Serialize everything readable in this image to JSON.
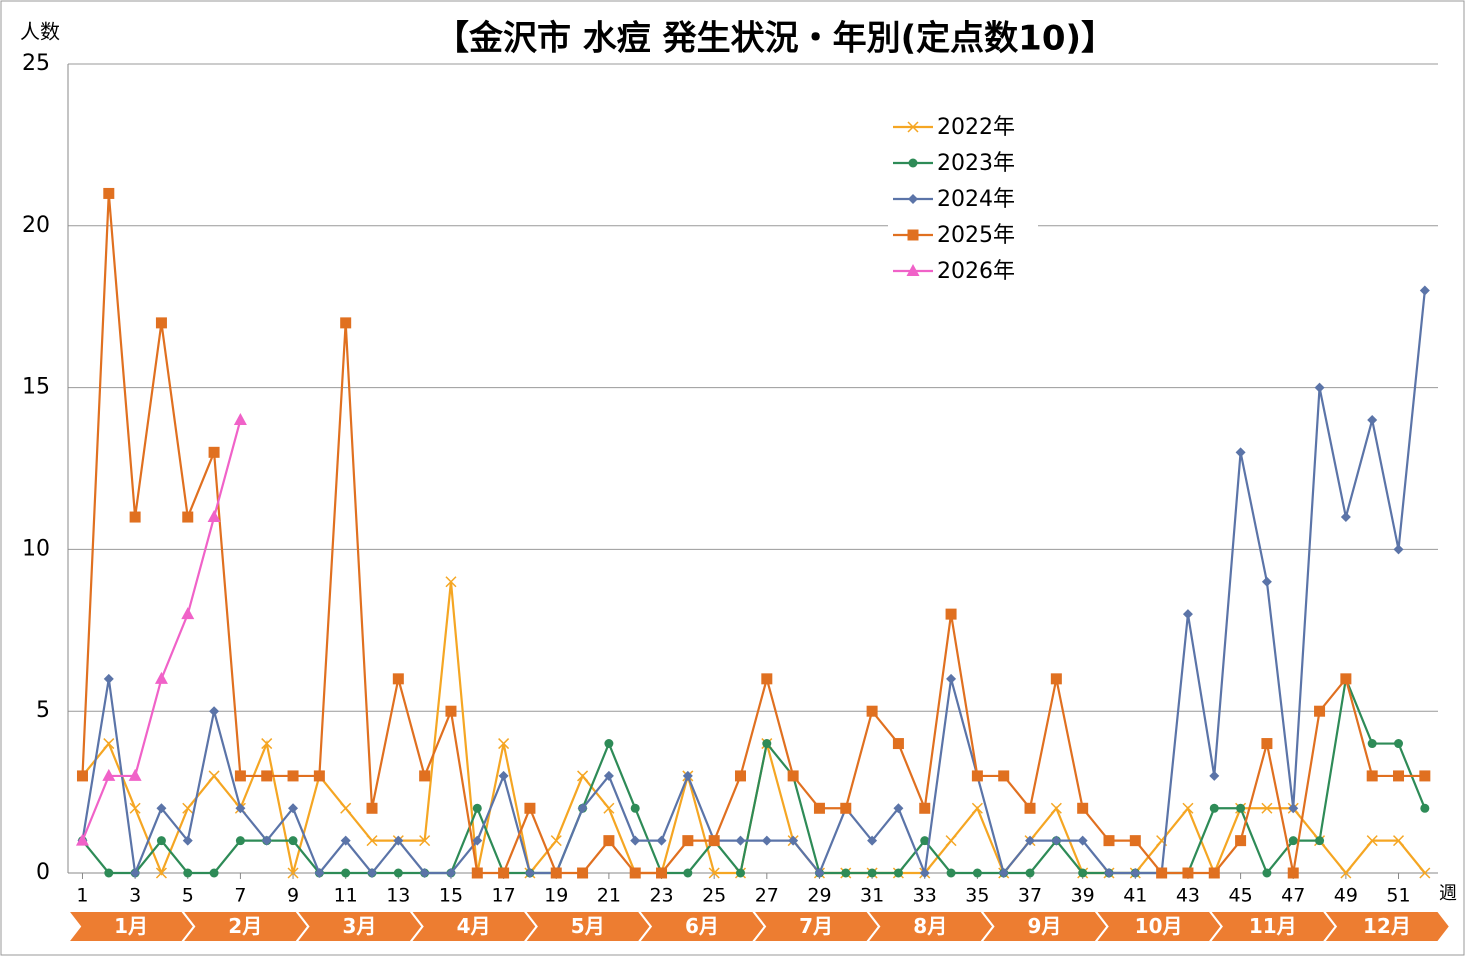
{
  "chart_data": {
    "type": "line",
    "title": "【金沢市 水痘 発生状況・年別(定点数10)】",
    "ylabel": "人数",
    "xlabel": "週",
    "x": [
      1,
      2,
      3,
      4,
      5,
      6,
      7,
      8,
      9,
      10,
      11,
      12,
      13,
      14,
      15,
      16,
      17,
      18,
      19,
      20,
      21,
      22,
      23,
      24,
      25,
      26,
      27,
      28,
      29,
      30,
      31,
      32,
      33,
      34,
      35,
      36,
      37,
      38,
      39,
      40,
      41,
      42,
      43,
      44,
      45,
      46,
      47,
      48,
      49,
      50,
      51,
      52
    ],
    "xlim": [
      0.45,
      52.5
    ],
    "xticks": [
      1,
      3,
      5,
      7,
      9,
      11,
      13,
      15,
      17,
      19,
      21,
      23,
      25,
      27,
      29,
      31,
      33,
      35,
      37,
      39,
      41,
      43,
      45,
      47,
      49,
      51
    ],
    "ylim": [
      0,
      25
    ],
    "yticks": [
      0,
      5,
      10,
      15,
      20,
      25
    ],
    "grid": true,
    "months": [
      "1月",
      "2月",
      "3月",
      "4月",
      "5月",
      "6月",
      "7月",
      "8月",
      "9月",
      "10月",
      "11月",
      "12月"
    ],
    "month_color": "#ed7d31",
    "legend": "upper center",
    "series": [
      {
        "name": "2022年",
        "color": "#f5a623",
        "marker": "x",
        "values": [
          3,
          4,
          2,
          0,
          2,
          3,
          2,
          4,
          0,
          3,
          2,
          1,
          1,
          1,
          9,
          0,
          4,
          0,
          1,
          3,
          2,
          0,
          0,
          3,
          0,
          0,
          4,
          1,
          0,
          0,
          0,
          0,
          0,
          1,
          2,
          0,
          1,
          2,
          0,
          0,
          0,
          1,
          2,
          0,
          2,
          2,
          2,
          1,
          0,
          1,
          1,
          0
        ]
      },
      {
        "name": "2023年",
        "color": "#2e8b57",
        "marker": "circle",
        "values": [
          1,
          0,
          0,
          1,
          0,
          0,
          1,
          1,
          1,
          0,
          0,
          0,
          0,
          0,
          0,
          2,
          0,
          0,
          0,
          2,
          4,
          2,
          0,
          0,
          1,
          0,
          4,
          3,
          0,
          0,
          0,
          0,
          1,
          0,
          0,
          0,
          0,
          1,
          0,
          0,
          0,
          0,
          0,
          2,
          2,
          0,
          1,
          1,
          6,
          4,
          4,
          2
        ]
      },
      {
        "name": "2024年",
        "color": "#5b74a8",
        "marker": "diamond",
        "values": [
          1,
          6,
          0,
          2,
          1,
          5,
          2,
          1,
          2,
          0,
          1,
          0,
          1,
          0,
          0,
          1,
          3,
          0,
          0,
          2,
          3,
          1,
          1,
          3,
          1,
          1,
          1,
          1,
          0,
          2,
          1,
          2,
          0,
          6,
          3,
          0,
          1,
          1,
          1,
          0,
          0,
          0,
          8,
          3,
          13,
          9,
          2,
          15,
          11,
          14,
          10,
          18
        ]
      },
      {
        "name": "2025年",
        "color": "#e07020",
        "marker": "square",
        "values": [
          3,
          21,
          11,
          17,
          11,
          13,
          3,
          3,
          3,
          3,
          17,
          2,
          6,
          3,
          5,
          0,
          0,
          2,
          0,
          0,
          1,
          0,
          0,
          1,
          1,
          3,
          6,
          3,
          2,
          2,
          5,
          4,
          2,
          8,
          3,
          3,
          2,
          6,
          2,
          1,
          1,
          0,
          0,
          0,
          1,
          4,
          0,
          5,
          6,
          3,
          3,
          3
        ]
      },
      {
        "name": "2026年",
        "color": "#f062c8",
        "marker": "triangle",
        "values": [
          1,
          3,
          3,
          6,
          8,
          11,
          14,
          null,
          null,
          null,
          null,
          null,
          null,
          null,
          null,
          null,
          null,
          null,
          null,
          null,
          null,
          null,
          null,
          null,
          null,
          null,
          null,
          null,
          null,
          null,
          null,
          null,
          null,
          null,
          null,
          null,
          null,
          null,
          null,
          null,
          null,
          null,
          null,
          null,
          null,
          null,
          null,
          null,
          null,
          null,
          null,
          null
        ]
      }
    ]
  }
}
